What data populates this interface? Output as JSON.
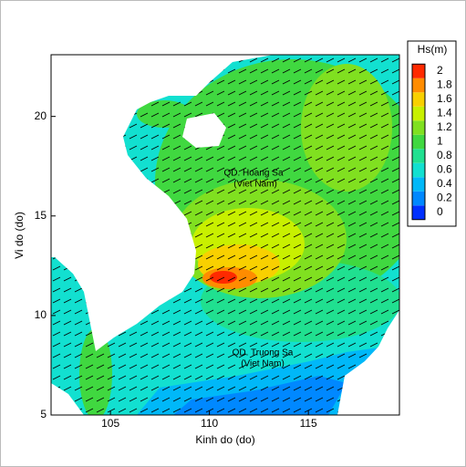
{
  "chart_data": {
    "type": "contour",
    "xlabel": "Kinh do (do)",
    "ylabel": "Vi do (do)",
    "xlim": [
      102,
      119.6
    ],
    "ylim": [
      5,
      23.1
    ],
    "xticks": [
      105,
      110,
      115
    ],
    "yticks": [
      5,
      10,
      15,
      20
    ],
    "annotations": [
      "QD. Hoang Sa",
      "(Viet Nam)",
      "QD. Truong Sa",
      "(Viet Nam)"
    ],
    "colorbar": {
      "title": "Hs(m)",
      "ticks": [
        0,
        0.2,
        0.4,
        0.6,
        0.8,
        1,
        1.2,
        1.4,
        1.6,
        1.8,
        2
      ],
      "colors": [
        "#0030ff",
        "#0088ff",
        "#00b8f8",
        "#12e0d0",
        "#20e090",
        "#40d840",
        "#80e020",
        "#c8f000",
        "#f8d000",
        "#ff8c00",
        "#ff2a00"
      ]
    }
  }
}
